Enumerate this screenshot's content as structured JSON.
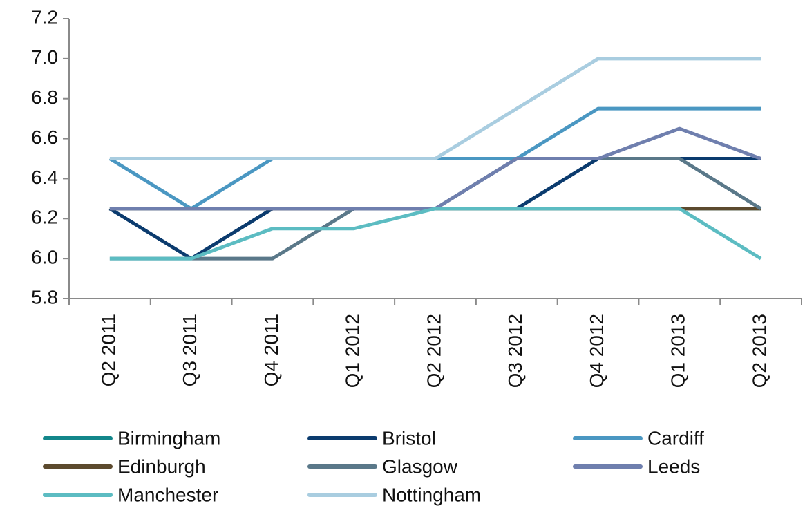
{
  "chart_data": {
    "type": "line",
    "categories": [
      "Q2 2011",
      "Q3 2011",
      "Q4 2011",
      "Q1 2012",
      "Q2 2012",
      "Q3 2012",
      "Q4 2012",
      "Q1 2013",
      "Q2 2013"
    ],
    "series": [
      {
        "name": "Birmingham",
        "color": "#12868a",
        "values": [
          6.25,
          6.25,
          6.25,
          6.25,
          6.25,
          6.25,
          6.25,
          6.25,
          6.25
        ]
      },
      {
        "name": "Bristol",
        "color": "#0b3b6e",
        "values": [
          6.25,
          6.0,
          6.25,
          6.25,
          6.25,
          6.25,
          6.5,
          6.5,
          6.5
        ]
      },
      {
        "name": "Cardiff",
        "color": "#4a97c2",
        "values": [
          6.5,
          6.25,
          6.5,
          6.5,
          6.5,
          6.5,
          6.75,
          6.75,
          6.75
        ]
      },
      {
        "name": "Edinburgh",
        "color": "#5c4a2e",
        "values": [
          6.25,
          6.25,
          6.25,
          6.25,
          6.25,
          6.25,
          6.25,
          6.25,
          6.25
        ]
      },
      {
        "name": "Glasgow",
        "color": "#5a7889",
        "values": [
          6.0,
          6.0,
          6.0,
          6.25,
          6.25,
          6.5,
          6.5,
          6.5,
          6.25
        ]
      },
      {
        "name": "Leeds",
        "color": "#6f7fae",
        "values": [
          6.25,
          6.25,
          6.25,
          6.25,
          6.25,
          6.5,
          6.5,
          6.65,
          6.5
        ]
      },
      {
        "name": "Manchester",
        "color": "#5cbcc2",
        "values": [
          6.0,
          6.0,
          6.15,
          6.15,
          6.25,
          6.25,
          6.25,
          6.25,
          6.0
        ]
      },
      {
        "name": "Nottingham",
        "color": "#a9cde0",
        "values": [
          6.5,
          6.5,
          6.5,
          6.5,
          6.5,
          6.75,
          7.0,
          7.0,
          7.0
        ]
      }
    ],
    "ylim": [
      5.8,
      7.2
    ],
    "yticks": [
      5.8,
      {
        "value": 6,
        "label": "6.0"
      },
      6.2,
      6.4,
      6.6,
      6.8,
      {
        "value": 7,
        "label": "7.0"
      },
      7.2
    ],
    "legend": "bottom"
  }
}
